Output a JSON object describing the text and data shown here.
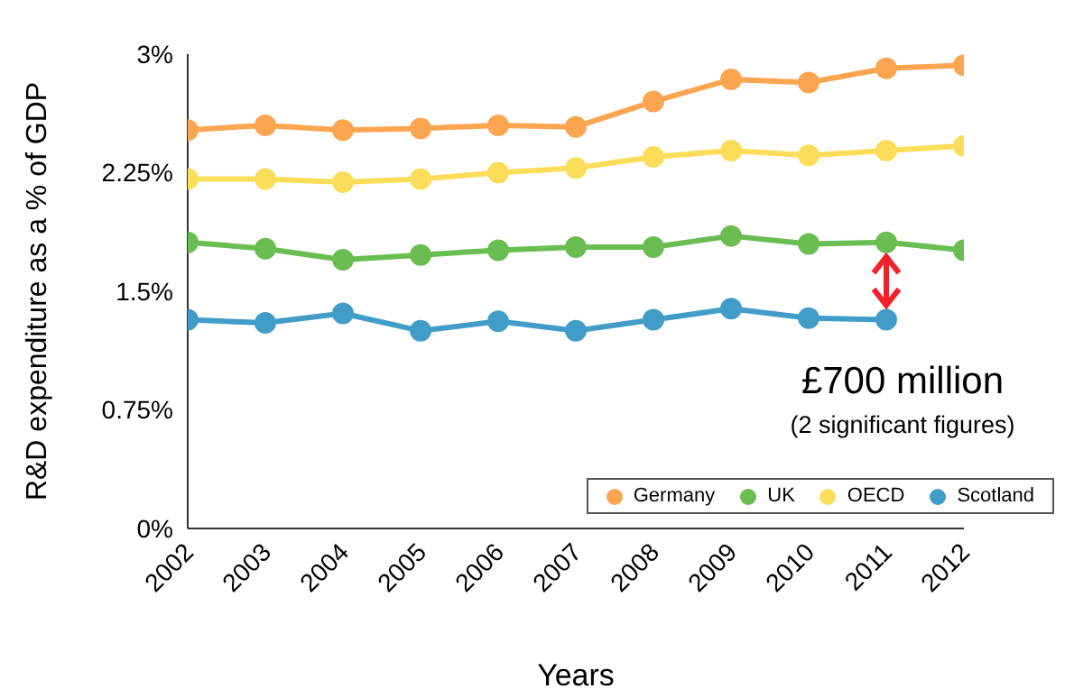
{
  "chart_data": {
    "type": "line",
    "xlabel": "Years",
    "ylabel": "R&D expenditure as a % of GDP",
    "x": [
      2002,
      2003,
      2004,
      2005,
      2006,
      2007,
      2008,
      2009,
      2010,
      2011,
      2012
    ],
    "xlim": [
      2002,
      2012
    ],
    "xticks": [
      2002,
      2003,
      2004,
      2005,
      2006,
      2007,
      2008,
      2009,
      2010,
      2011,
      2012
    ],
    "ylim": [
      0,
      3
    ],
    "yticks": [
      {
        "value": 0,
        "label": "0%"
      },
      {
        "value": 0.75,
        "label": "0.75%"
      },
      {
        "value": 1.5,
        "label": "1.5%"
      },
      {
        "value": 2.25,
        "label": "2.25%"
      },
      {
        "value": 3,
        "label": "3%"
      }
    ],
    "series": [
      {
        "name": "Germany",
        "color": "#fba551",
        "values": [
          2.52,
          2.55,
          2.52,
          2.53,
          2.55,
          2.54,
          2.7,
          2.84,
          2.82,
          2.91,
          2.93
        ]
      },
      {
        "name": "UK",
        "color": "#6abd51",
        "values": [
          1.81,
          1.77,
          1.7,
          1.73,
          1.76,
          1.78,
          1.78,
          1.85,
          1.8,
          1.81,
          1.76
        ]
      },
      {
        "name": "OECD",
        "color": "#fbdd5a",
        "values": [
          2.21,
          2.21,
          2.19,
          2.21,
          2.25,
          2.28,
          2.35,
          2.39,
          2.36,
          2.39,
          2.42
        ]
      },
      {
        "name": "Scotland",
        "color": "#419dc8",
        "values": [
          1.32,
          1.3,
          1.36,
          1.25,
          1.31,
          1.25,
          1.32,
          1.39,
          1.33,
          1.32,
          null
        ]
      }
    ],
    "annotations": [
      "£700 million",
      "(2 significant figures)"
    ],
    "grid": false,
    "legend": "bottom right",
    "marker": "circle",
    "line_style": "solid"
  }
}
